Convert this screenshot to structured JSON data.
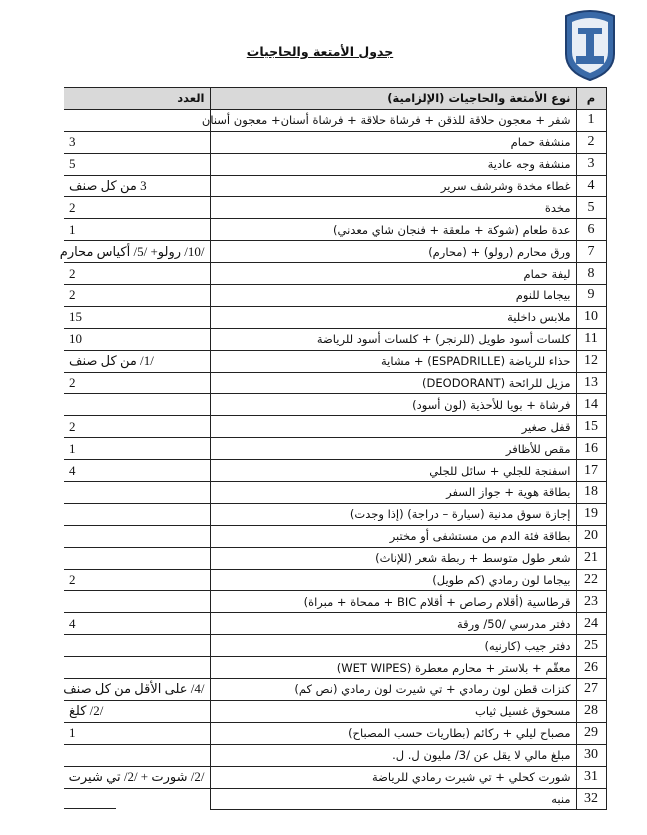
{
  "document": {
    "title": "جدول الأمتعة والحاجيات",
    "logo": "lebanese-internal-security-forces-emblem",
    "colors": {
      "header_bg": "#d9d9d9",
      "logo_blue": "#3a6aa8"
    }
  },
  "table": {
    "headers": {
      "number": "م",
      "item": "نوع الأمتعة والحاجيات (الإلزامية)",
      "count": "العدد"
    },
    "rows": [
      {
        "n": "1",
        "item": "شفر + معجون حلاقة للذقن + فرشاة حلاقة + فرشاة أسنان+ معجون أسنان",
        "count": ""
      },
      {
        "n": "2",
        "item": "منشفة حمام",
        "count": "3"
      },
      {
        "n": "3",
        "item": "منشفة وجه عادية",
        "count": "5"
      },
      {
        "n": "4",
        "item": "غطاء مخدة وشرشف سرير",
        "count": "3 من كل صنف"
      },
      {
        "n": "5",
        "item": "مخدة",
        "count": "2"
      },
      {
        "n": "6",
        "item": "عدة طعام (شوكة + ملعقة + فنجان شاي معدني)",
        "count": "1"
      },
      {
        "n": "7",
        "item": "ورق محارم (رولو) + (محارم)",
        "count": "/10/ رولو+ /5/ أكياس محارم"
      },
      {
        "n": "8",
        "item": "ليفة حمام",
        "count": "2"
      },
      {
        "n": "9",
        "item": "بيجاما للنوم",
        "count": "2"
      },
      {
        "n": "10",
        "item": "ملابس داخلية",
        "count": "15"
      },
      {
        "n": "11",
        "item": "كلسات أسود طويل (للرنجر) + كلسات أسود للرياضة",
        "count": "10"
      },
      {
        "n": "12",
        "item": "حذاء للرياضة (ESPADRILLE) + مشاية",
        "count": "/1/ من كل صنف"
      },
      {
        "n": "13",
        "item": "مزيل للرائحة (DEODORANT)",
        "count": "2"
      },
      {
        "n": "14",
        "item": "فرشاة + بويا للأحذية (لون أسود)",
        "count": ""
      },
      {
        "n": "15",
        "item": "قفل صغير",
        "count": "2"
      },
      {
        "n": "16",
        "item": "مقص للأظافر",
        "count": "1"
      },
      {
        "n": "17",
        "item": "اسفنجة للجلي + سائل للجلي",
        "count": "4"
      },
      {
        "n": "18",
        "item": "بطاقة هوية + جواز السفر",
        "count": ""
      },
      {
        "n": "19",
        "item": "إجازة سوق مدنية (سيارة – دراجة) (إذا وجدت)",
        "count": ""
      },
      {
        "n": "20",
        "item": "بطاقة فئة الدم من مستشفى أو مختبر",
        "count": ""
      },
      {
        "n": "21",
        "item": "شعر طول متوسط + ربطة شعر (للإناث)",
        "count": ""
      },
      {
        "n": "22",
        "item": "بيجاما لون رمادي (كم طويل)",
        "count": "2"
      },
      {
        "n": "23",
        "item": "قرطاسية (أقلام رصاص + أقلام BIC + ممحاة + مبراة)",
        "count": ""
      },
      {
        "n": "24",
        "item": "دفتر مدرسي /50/ ورقة",
        "count": "4"
      },
      {
        "n": "25",
        "item": "دفتر جيب (كارنيه)",
        "count": ""
      },
      {
        "n": "26",
        "item": "معقّم + بلاستر + محارم معطرة (WET WIPES)",
        "count": ""
      },
      {
        "n": "27",
        "item": "كنزات قطن لون رمادي + تي شيرت لون رمادي (نص كم)",
        "count": "/4/ على الأقل من كل صنف"
      },
      {
        "n": "28",
        "item": "مسحوق غسيل ثياب",
        "count": "/2/ كلغ"
      },
      {
        "n": "29",
        "item": "مصباح ليلي + ركائم (بطاريات حسب المصباح)",
        "count": "1"
      },
      {
        "n": "30",
        "item": "مبلغ مالي لا يقل عن /3/ مليون ل. ل.",
        "count": ""
      },
      {
        "n": "31",
        "item": "شورت كحلي + تي شيرت رمادي للرياضة",
        "count": "/2/ شورت + /2/ تي شيرت"
      },
      {
        "n": "32",
        "item": "منبه",
        "count": ""
      }
    ]
  }
}
